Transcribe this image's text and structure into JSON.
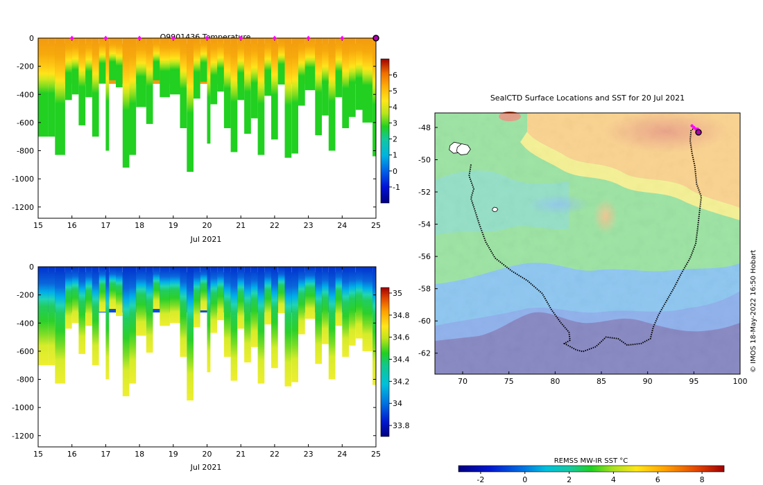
{
  "colors": {
    "temp_fill": "#21d021",
    "salinity_fill": "#d6ec2a",
    "profile_marker": "#ff00ff",
    "track": "#000000",
    "land": "#ffffff"
  },
  "credit": "© IMOS 18-May-2022 16:50 Hobart",
  "chart_data": [
    {
      "id": "temperature",
      "type": "heatmap",
      "title": "Q9901436  Temperature",
      "xlabel": "Jul 2021",
      "ylabel": "",
      "x_ticks": [
        "15",
        "16",
        "17",
        "18",
        "19",
        "20",
        "21",
        "22",
        "23",
        "24",
        "25"
      ],
      "y_ticks": [
        "0",
        "-200",
        "-400",
        "-600",
        "-800",
        "-1000",
        "-1200"
      ],
      "xlim": [
        15,
        25
      ],
      "ylim": [
        -1280,
        0
      ],
      "colorbar": {
        "min": -2,
        "max": 7,
        "ticks": [
          "-1",
          "0",
          "1",
          "2",
          "3",
          "4",
          "5",
          "6"
        ]
      },
      "profile_markers_day": [
        16,
        17,
        18,
        19,
        20,
        21,
        22,
        23,
        24
      ],
      "latest_marker_day": 25,
      "profile_depths": [
        [
          15.0,
          -700
        ],
        [
          15.3,
          -700
        ],
        [
          15.5,
          -830
        ],
        [
          15.8,
          -440
        ],
        [
          16.0,
          -400
        ],
        [
          16.2,
          -620
        ],
        [
          16.4,
          -420
        ],
        [
          16.6,
          -700
        ],
        [
          16.8,
          -320
        ],
        [
          17.0,
          -800
        ],
        [
          17.1,
          -300
        ],
        [
          17.3,
          -350
        ],
        [
          17.5,
          -920
        ],
        [
          17.7,
          -830
        ],
        [
          17.9,
          -490
        ],
        [
          18.2,
          -610
        ],
        [
          18.4,
          -300
        ],
        [
          18.6,
          -420
        ],
        [
          18.9,
          -400
        ],
        [
          19.2,
          -640
        ],
        [
          19.4,
          -950
        ],
        [
          19.6,
          -430
        ],
        [
          19.8,
          -310
        ],
        [
          20.0,
          -750
        ],
        [
          20.1,
          -470
        ],
        [
          20.3,
          -380
        ],
        [
          20.5,
          -640
        ],
        [
          20.7,
          -810
        ],
        [
          20.9,
          -440
        ],
        [
          21.1,
          -680
        ],
        [
          21.3,
          -570
        ],
        [
          21.5,
          -830
        ],
        [
          21.7,
          -410
        ],
        [
          21.9,
          -720
        ],
        [
          22.1,
          -330
        ],
        [
          22.3,
          -850
        ],
        [
          22.5,
          -820
        ],
        [
          22.7,
          -480
        ],
        [
          22.9,
          -370
        ],
        [
          23.2,
          -690
        ],
        [
          23.4,
          -550
        ],
        [
          23.6,
          -800
        ],
        [
          23.8,
          -420
        ],
        [
          24.0,
          -640
        ],
        [
          24.2,
          -560
        ],
        [
          24.4,
          -510
        ],
        [
          24.6,
          -600
        ],
        [
          24.9,
          -840
        ]
      ]
    },
    {
      "id": "salinity",
      "type": "heatmap",
      "title": "",
      "xlabel": "Jul 2021",
      "ylabel": "",
      "x_ticks": [
        "15",
        "16",
        "17",
        "18",
        "19",
        "20",
        "21",
        "22",
        "23",
        "24",
        "25"
      ],
      "y_ticks": [
        "0",
        "-200",
        "-400",
        "-600",
        "-800",
        "-1000",
        "-1200"
      ],
      "xlim": [
        15,
        25
      ],
      "ylim": [
        -1280,
        0
      ],
      "colorbar": {
        "min": 33.7,
        "max": 35.05,
        "ticks": [
          "33.8",
          "34",
          "34.2",
          "34.4",
          "34.6",
          "34.8",
          "35"
        ]
      }
    },
    {
      "id": "sst_map",
      "type": "heatmap",
      "title": "SealCTD Surface Locations and SST for 20 Jul 2021",
      "xlabel": "",
      "ylabel": "",
      "x_ticks": [
        "70",
        "75",
        "80",
        "85",
        "90",
        "95",
        "100"
      ],
      "y_ticks": [
        "-48",
        "-50",
        "-52",
        "-54",
        "-56",
        "-58",
        "-60",
        "-62"
      ],
      "xlim": [
        67,
        100
      ],
      "ylim": [
        -63.3,
        -47.1
      ],
      "colorbar": {
        "label": "REMSS MW-IR SST °C",
        "min": -3,
        "max": 9,
        "ticks": [
          "-2",
          "0",
          "2",
          "4",
          "6",
          "8"
        ]
      },
      "track_lon_lat": [
        [
          70.9,
          -50.3
        ],
        [
          70.7,
          -51.0
        ],
        [
          71.2,
          -51.8
        ],
        [
          70.9,
          -52.4
        ],
        [
          71.3,
          -53.1
        ],
        [
          71.8,
          -54.0
        ],
        [
          72.5,
          -55.1
        ],
        [
          73.5,
          -56.1
        ],
        [
          75.3,
          -56.9
        ],
        [
          77.0,
          -57.5
        ],
        [
          78.6,
          -58.3
        ],
        [
          79.6,
          -59.3
        ],
        [
          80.6,
          -60.1
        ],
        [
          81.5,
          -60.7
        ],
        [
          81.6,
          -61.2
        ],
        [
          81.0,
          -61.4
        ],
        [
          82.3,
          -61.8
        ],
        [
          83.0,
          -61.9
        ],
        [
          84.4,
          -61.6
        ],
        [
          85.5,
          -61.0
        ],
        [
          86.8,
          -61.1
        ],
        [
          87.8,
          -61.5
        ],
        [
          89.3,
          -61.4
        ],
        [
          90.3,
          -61.1
        ],
        [
          90.6,
          -60.4
        ],
        [
          91.2,
          -59.6
        ],
        [
          92.0,
          -58.8
        ],
        [
          92.9,
          -57.9
        ],
        [
          93.6,
          -57.1
        ],
        [
          94.6,
          -56.1
        ],
        [
          95.2,
          -55.2
        ],
        [
          95.4,
          -54.3
        ],
        [
          95.6,
          -53.3
        ],
        [
          95.8,
          -52.3
        ],
        [
          95.3,
          -51.5
        ],
        [
          95.1,
          -50.4
        ],
        [
          94.8,
          -49.6
        ],
        [
          94.6,
          -48.8
        ],
        [
          94.7,
          -48.2
        ],
        [
          95.1,
          -48.0
        ],
        [
          95.3,
          -48.1
        ]
      ],
      "recent_positions_lon_lat": [
        [
          94.8,
          -47.9
        ],
        [
          95.0,
          -48.0
        ],
        [
          95.2,
          -48.1
        ],
        [
          95.4,
          -48.1
        ]
      ],
      "current_position_lon_lat": [
        95.5,
        -48.3
      ],
      "islands_lon_lat": [
        [
          69.3,
          -49.3
        ],
        [
          70.1,
          -49.4
        ],
        [
          73.5,
          -53.1
        ]
      ]
    }
  ]
}
